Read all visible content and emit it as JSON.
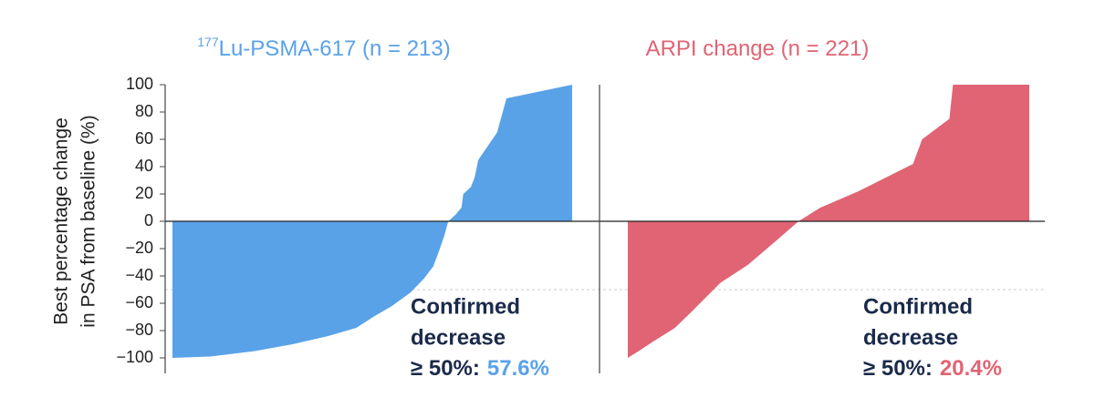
{
  "chart_data": [
    {
      "type": "area",
      "title_superscript": "177",
      "title": "Lu-PSMA-617 (n = 213)",
      "color": "#5aa2e8",
      "y_label": [
        "Best percentage change",
        "in PSA from baseline (%)"
      ],
      "x": [
        0,
        20,
        44,
        64,
        83,
        98,
        107,
        117,
        127,
        134,
        139,
        142,
        145,
        147,
        151,
        154,
        155,
        159,
        161,
        163,
        168,
        173,
        176,
        178,
        213
      ],
      "values": [
        -100,
        -99,
        -95,
        -90,
        -84,
        -78,
        -70,
        -62,
        -52,
        -42,
        -33,
        -22,
        -10,
        0,
        5,
        10,
        20,
        25,
        32,
        45,
        55,
        65,
        80,
        90,
        100
      ],
      "xlim": [
        0,
        213
      ],
      "ylim": [
        -100,
        100
      ],
      "yticks": [
        {
          "value": -100,
          "label": "−100"
        },
        {
          "value": -80,
          "label": "−80"
        },
        {
          "value": -60,
          "label": "−60"
        },
        {
          "value": -40,
          "label": "−40"
        },
        {
          "value": -20,
          "label": "−20"
        },
        0,
        20,
        40,
        60,
        80,
        100
      ],
      "reference_line": -50,
      "annotation": [
        "Confirmed",
        "decrease"
      ],
      "annotation_prefix": "≥ 50%:",
      "annotation_value": "57.6%"
    },
    {
      "type": "area",
      "title": "ARPI change (n = 221)",
      "color": "#e06474",
      "x": [
        0,
        6,
        14,
        26,
        36,
        51,
        66,
        81,
        94,
        106,
        127,
        142,
        157,
        162,
        177,
        179,
        221
      ],
      "values": [
        -100,
        -95,
        -88,
        -78,
        -65,
        -45,
        -32,
        -15,
        0,
        10,
        22,
        32,
        42,
        60,
        75,
        100,
        100
      ],
      "xlim": [
        0,
        221
      ],
      "ylim": [
        -100,
        100
      ],
      "annotation": [
        "Confirmed",
        "decrease"
      ],
      "annotation_prefix": "≥ 50%:",
      "annotation_value": "20.4%"
    }
  ]
}
